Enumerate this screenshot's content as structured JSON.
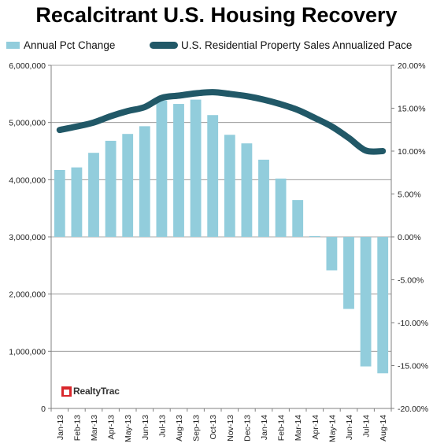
{
  "chart_data": {
    "title": "Recalcitrant U.S. Housing Recovery",
    "type": "bar+line",
    "categories": [
      "Jan-13",
      "Feb-13",
      "Mar-13",
      "Apr-13",
      "May-13",
      "Jun-13",
      "Jul-13",
      "Aug-13",
      "Sep-13",
      "Oct-13",
      "Nov-13",
      "Dec-13",
      "Jan-14",
      "Feb-14",
      "Mar-14",
      "Apr-14",
      "May-14",
      "Jun-14",
      "Jul-14",
      "Aug-14"
    ],
    "series": [
      {
        "name": "Annual Pct Change",
        "kind": "bar",
        "axis": "right",
        "color": "#92cddc",
        "values": [
          7.8,
          8.1,
          9.8,
          11.2,
          12.0,
          12.9,
          15.9,
          15.5,
          16.0,
          14.2,
          11.9,
          10.9,
          9.0,
          6.8,
          4.3,
          0.1,
          -3.9,
          -8.4,
          -15.1,
          -15.9
        ]
      },
      {
        "name": "U.S. Residential Property Sales Annualized Pace",
        "kind": "line",
        "axis": "left",
        "color": "#215867",
        "values": [
          4870000,
          4930000,
          5000000,
          5110000,
          5200000,
          5270000,
          5430000,
          5470000,
          5510000,
          5530000,
          5500000,
          5460000,
          5400000,
          5320000,
          5220000,
          5080000,
          4930000,
          4730000,
          4510000,
          4500000
        ]
      }
    ],
    "y_left": {
      "min": 0,
      "max": 6000000,
      "step": 1000000,
      "ticks": [
        "0",
        "1,000,000",
        "2,000,000",
        "3,000,000",
        "4,000,000",
        "5,000,000",
        "6,000,000"
      ]
    },
    "y_right": {
      "min": -20,
      "max": 20,
      "step": 5,
      "ticks": [
        "-20.00%",
        "-15.00%",
        "-10.00%",
        "-5.00%",
        "0.00%",
        "5.00%",
        "10.00%",
        "15.00%",
        "20.00%"
      ]
    },
    "grid": true,
    "legend_position": "top"
  },
  "logo": {
    "text": "RealtyTrac"
  }
}
